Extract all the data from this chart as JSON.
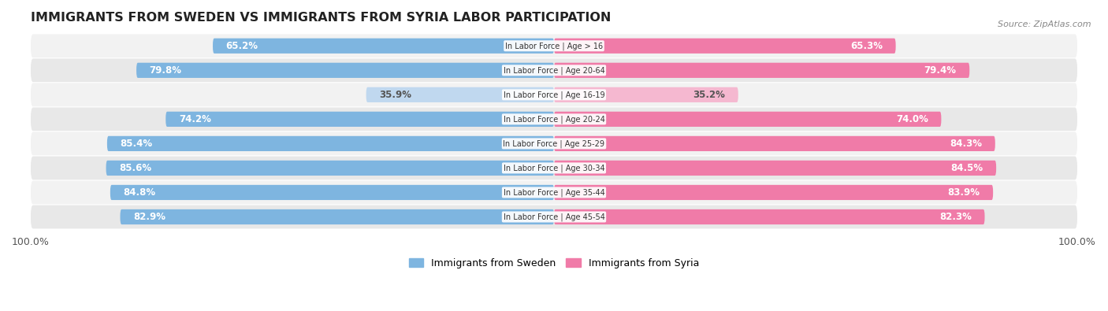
{
  "title": "IMMIGRANTS FROM SWEDEN VS IMMIGRANTS FROM SYRIA LABOR PARTICIPATION",
  "source": "Source: ZipAtlas.com",
  "categories": [
    "In Labor Force | Age > 16",
    "In Labor Force | Age 20-64",
    "In Labor Force | Age 16-19",
    "In Labor Force | Age 20-24",
    "In Labor Force | Age 25-29",
    "In Labor Force | Age 30-34",
    "In Labor Force | Age 35-44",
    "In Labor Force | Age 45-54"
  ],
  "sweden_values": [
    65.2,
    79.8,
    35.9,
    74.2,
    85.4,
    85.6,
    84.8,
    82.9
  ],
  "syria_values": [
    65.3,
    79.4,
    35.2,
    74.0,
    84.3,
    84.5,
    83.9,
    82.3
  ],
  "sweden_color": "#7EB5E0",
  "sweden_color_light": "#C0D8EF",
  "syria_color": "#F07BA8",
  "syria_color_light": "#F5B8D0",
  "row_bg_color_odd": "#F2F2F2",
  "row_bg_color_even": "#E8E8E8",
  "max_value": 100.0,
  "legend_sweden": "Immigrants from Sweden",
  "legend_syria": "Immigrants from Syria",
  "label_fontsize": 8.5,
  "title_fontsize": 11.5,
  "bar_height": 0.62
}
